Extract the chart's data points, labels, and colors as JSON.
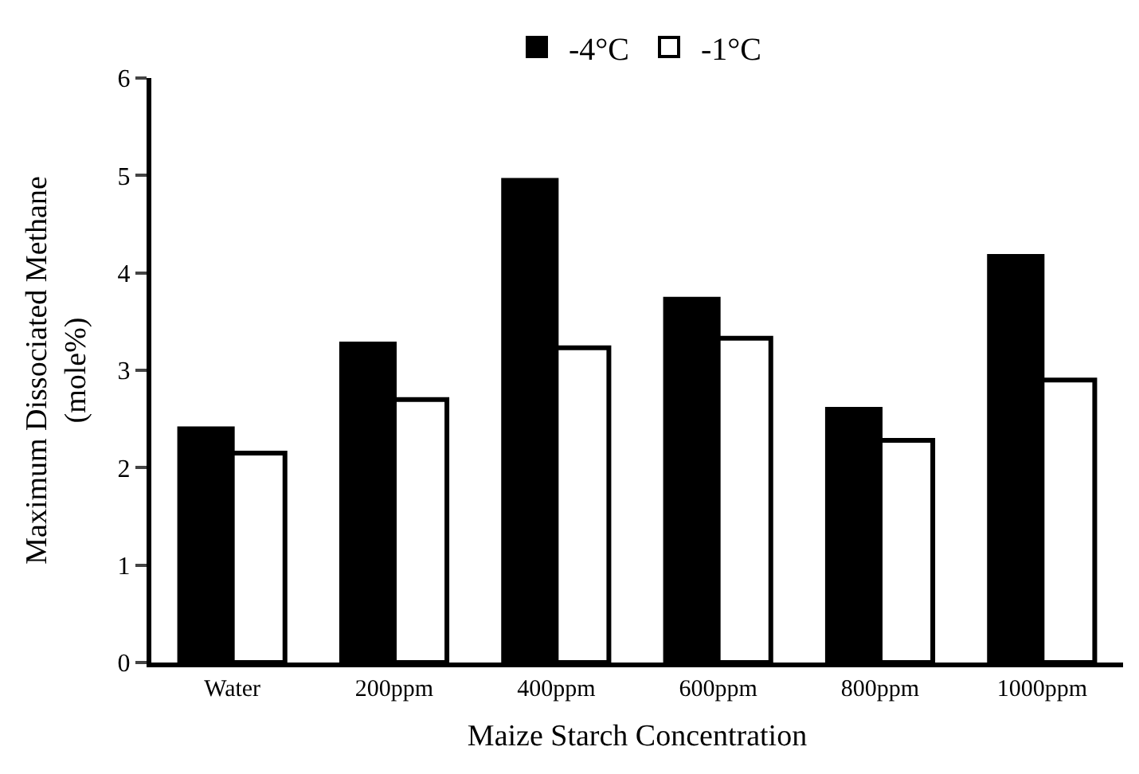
{
  "chart_data": {
    "type": "bar",
    "xlabel": "Maize Starch Concentration",
    "ylabel": "Maximum Dissociated Methane\n(mole%)",
    "categories": [
      "Water",
      "200ppm",
      "400ppm",
      "600ppm",
      "800ppm",
      "1000ppm"
    ],
    "series": [
      {
        "name": "-4°C",
        "color": "#000000",
        "values": [
          2.4,
          3.27,
          4.95,
          3.73,
          2.6,
          4.17
        ]
      },
      {
        "name": "-1°C",
        "color": "#ffffff",
        "values": [
          2.15,
          2.7,
          3.23,
          3.33,
          2.28,
          2.9
        ]
      }
    ],
    "ylim": [
      0,
      6
    ],
    "yticks": [
      0,
      1,
      2,
      3,
      4,
      5,
      6
    ],
    "legend": "top"
  }
}
